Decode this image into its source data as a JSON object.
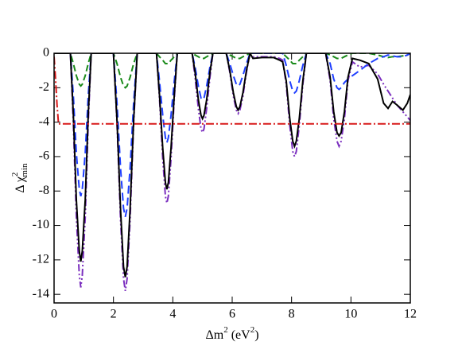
{
  "chart_data": {
    "type": "line",
    "xlabel": [
      {
        "text": "Δm"
      },
      {
        "text": "2",
        "sup": true
      },
      {
        "text": " (eV"
      },
      {
        "text": "2",
        "sup": true
      },
      {
        "text": ")"
      }
    ],
    "ylabel": [
      {
        "text": "Δ χ"
      },
      {
        "text": "2",
        "sup": true
      },
      {
        "text": "min",
        "sub": true
      }
    ],
    "xlim": [
      0,
      12
    ],
    "ylim": [
      -14.5,
      0
    ],
    "xticks": [
      0,
      2,
      4,
      6,
      8,
      10,
      12
    ],
    "yticks": [
      0,
      -2,
      -4,
      -6,
      -8,
      -10,
      -12,
      -14
    ],
    "x": [
      0,
      0.5,
      0.55,
      0.65,
      0.75,
      0.85,
      0.9,
      0.95,
      1.05,
      1.15,
      1.25,
      1.9,
      2.0,
      2.12,
      2.24,
      2.34,
      2.4,
      2.46,
      2.56,
      2.68,
      2.8,
      3.4,
      3.45,
      3.55,
      3.66,
      3.75,
      3.8,
      3.85,
      3.94,
      4.05,
      4.15,
      4.6,
      4.65,
      4.75,
      4.86,
      4.95,
      5.0,
      5.05,
      5.14,
      5.25,
      5.35,
      5.75,
      5.8,
      5.92,
      6.04,
      6.14,
      6.2,
      6.26,
      6.36,
      6.48,
      6.6,
      6.7,
      7.0,
      7.4,
      7.6,
      7.7,
      7.82,
      7.94,
      8.04,
      8.1,
      8.16,
      8.26,
      8.38,
      8.5,
      9.1,
      9.15,
      9.3,
      9.42,
      9.53,
      9.6,
      9.67,
      9.78,
      9.9,
      10.05,
      10.3,
      10.6,
      10.9,
      11.1,
      11.25,
      11.4,
      11.55,
      11.75,
      11.9,
      12
    ],
    "series": [
      {
        "color": "#7b2fbf",
        "dash": "9,3,2,3,2,3",
        "values": [
          0,
          0,
          0,
          -4.1,
          -9.5,
          -12.9,
          -13.6,
          -12.9,
          -9.5,
          -4.1,
          0,
          0,
          0,
          -4.1,
          -9.7,
          -13.1,
          -13.8,
          -13.1,
          -9.7,
          -4.1,
          0,
          0,
          0,
          -2.6,
          -6.1,
          -8.3,
          -8.7,
          -8.3,
          -6.1,
          -2.6,
          0,
          0,
          0,
          -1.4,
          -3.2,
          -4.4,
          -4.6,
          -4.4,
          -3.2,
          -1.4,
          0,
          0,
          0,
          -1.1,
          -2.5,
          -3.3,
          -3.5,
          -3.3,
          -2.5,
          -1.1,
          0,
          -0.2,
          -0.2,
          -0.2,
          -0.3,
          -0.4,
          -1.8,
          -4.2,
          -5.7,
          -6.0,
          -5.7,
          -4.2,
          -1.8,
          0,
          0,
          0,
          -1.6,
          -3.8,
          -5.1,
          -5.4,
          -5.1,
          -3.8,
          -1.6,
          -0.5,
          -0.8,
          -0.7,
          -1.2,
          -1.8,
          -2.2,
          -2.6,
          -3.0,
          -3.4,
          -3.7,
          -3.9
        ]
      },
      {
        "color": "#1a8a1a",
        "dash": "8,4",
        "values": [
          0,
          0,
          0,
          -0.6,
          -1.3,
          -1.8,
          -1.9,
          -1.8,
          -1.3,
          -0.6,
          0,
          0,
          0,
          -0.6,
          -1.4,
          -1.9,
          -2.0,
          -1.9,
          -1.4,
          -0.6,
          0,
          0,
          0,
          -0.2,
          -0.4,
          -0.6,
          -0.6,
          -0.6,
          -0.4,
          -0.2,
          0,
          0,
          0,
          -0.1,
          -0.2,
          -0.3,
          -0.3,
          -0.3,
          -0.2,
          -0.1,
          0,
          0,
          0,
          -0.1,
          -0.2,
          -0.3,
          -0.3,
          -0.3,
          -0.2,
          -0.1,
          0,
          0,
          0,
          0,
          0,
          0,
          -0.2,
          -0.4,
          -0.6,
          -0.6,
          -0.6,
          -0.4,
          -0.2,
          0,
          0,
          0,
          -0.1,
          -0.2,
          -0.3,
          -0.3,
          -0.3,
          -0.2,
          -0.1,
          0,
          0,
          0,
          -0.1,
          -0.2,
          -0.25,
          -0.2,
          -0.2,
          -0.15,
          -0.1,
          0
        ]
      },
      {
        "color": "#1f3fff",
        "dash": "10,5",
        "values": [
          0,
          0,
          0,
          -2.5,
          -5.8,
          -7.9,
          -8.3,
          -7.9,
          -5.8,
          -2.5,
          0,
          0,
          0,
          -2.9,
          -6.7,
          -9.0,
          -9.5,
          -9.0,
          -6.7,
          -2.9,
          0,
          0,
          0,
          -1.6,
          -3.6,
          -4.9,
          -5.2,
          -4.9,
          -3.6,
          -1.6,
          0,
          0,
          0,
          -0.8,
          -1.9,
          -2.6,
          -2.7,
          -2.6,
          -1.9,
          -0.8,
          0,
          0,
          0,
          -0.6,
          -1.3,
          -1.8,
          -1.9,
          -1.8,
          -1.3,
          -0.6,
          0,
          0,
          0,
          0,
          0,
          0,
          -0.7,
          -1.6,
          -2.2,
          -2.3,
          -2.2,
          -1.6,
          -0.7,
          0,
          0,
          0,
          -0.6,
          -1.5,
          -2.0,
          -2.1,
          -2.0,
          -1.7,
          -1.5,
          -1.3,
          -1.0,
          -0.6,
          -0.3,
          -0.2,
          -0.1,
          -0.15,
          -0.2,
          -0.2,
          -0.1,
          0
        ]
      },
      {
        "color": "#000000",
        "dash": "none",
        "values": [
          0,
          0,
          0,
          -3.6,
          -8.5,
          -11.5,
          -12.1,
          -11.5,
          -8.5,
          -3.6,
          0,
          0,
          0,
          -3.9,
          -9.1,
          -12.4,
          -13,
          -12.4,
          -9.1,
          -3.9,
          0,
          0,
          0,
          -2.4,
          -5.5,
          -7.5,
          -7.9,
          -7.5,
          -5.5,
          -2.4,
          0,
          0,
          0,
          -1.1,
          -2.7,
          -3.6,
          -3.8,
          -3.6,
          -2.7,
          -1.1,
          0,
          0,
          0,
          -1,
          -2.3,
          -3.1,
          -3.3,
          -3.1,
          -2.3,
          -1,
          0,
          -0.3,
          -0.25,
          -0.25,
          -0.4,
          -0.5,
          -1.6,
          -3.8,
          -5.1,
          -5.4,
          -5.1,
          -3.8,
          -1.6,
          0,
          0,
          0,
          -1.4,
          -3.4,
          -4.6,
          -4.8,
          -4.6,
          -3.4,
          -1.4,
          -0.3,
          -0.4,
          -0.6,
          -1.5,
          -2.9,
          -3.2,
          -2.8,
          -3.0,
          -3.3,
          -2.9,
          -2.4
        ]
      },
      {
        "color": "#d81a1a",
        "dash": "10,3,2,3",
        "x": [
          0,
          0.05,
          0.1,
          0.15,
          12
        ],
        "values": [
          -0.2,
          -1.5,
          -3,
          -4.1,
          -4.1
        ]
      }
    ]
  }
}
